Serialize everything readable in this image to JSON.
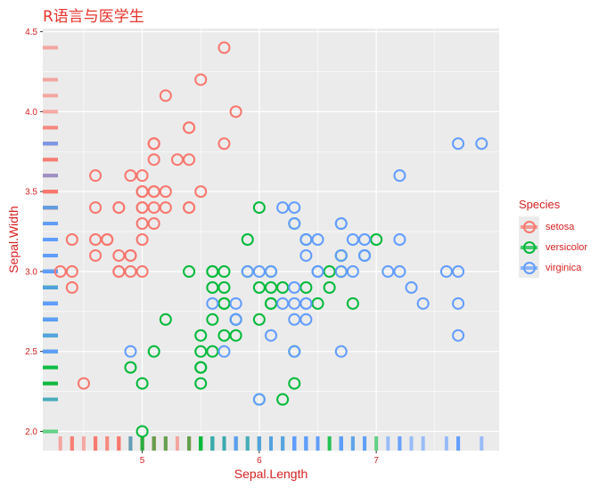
{
  "chart_data": {
    "type": "scatter",
    "title": "R语言与医学生",
    "xlabel": "Sepal.Length",
    "ylabel": "Sepal.Width",
    "xlim": [
      4.15,
      8.05
    ],
    "ylim": [
      1.88,
      4.52
    ],
    "x_ticks": [
      5,
      6,
      7
    ],
    "y_ticks": [
      2.0,
      2.5,
      3.0,
      3.5,
      4.0,
      4.5
    ],
    "x_tick_labels": [
      "5",
      "6",
      "7"
    ],
    "y_tick_labels": [
      "2.0",
      "2.5",
      "3.0",
      "3.5",
      "4.0",
      "4.5"
    ],
    "grid": true,
    "rug": true,
    "legend": {
      "title": "Species",
      "placement": "right"
    },
    "series": [
      {
        "name": "setosa",
        "color": "#F8766D",
        "points": [
          [
            5.1,
            3.5
          ],
          [
            4.9,
            3.0
          ],
          [
            4.7,
            3.2
          ],
          [
            4.6,
            3.1
          ],
          [
            5.0,
            3.6
          ],
          [
            5.4,
            3.9
          ],
          [
            4.6,
            3.4
          ],
          [
            5.0,
            3.4
          ],
          [
            4.4,
            2.9
          ],
          [
            4.9,
            3.1
          ],
          [
            5.4,
            3.7
          ],
          [
            4.8,
            3.4
          ],
          [
            4.8,
            3.0
          ],
          [
            4.3,
            3.0
          ],
          [
            5.8,
            4.0
          ],
          [
            5.7,
            4.4
          ],
          [
            5.4,
            3.9
          ],
          [
            5.1,
            3.5
          ],
          [
            5.7,
            3.8
          ],
          [
            5.1,
            3.8
          ],
          [
            5.4,
            3.4
          ],
          [
            5.1,
            3.7
          ],
          [
            4.6,
            3.6
          ],
          [
            5.1,
            3.3
          ],
          [
            4.8,
            3.4
          ],
          [
            5.0,
            3.0
          ],
          [
            5.0,
            3.4
          ],
          [
            5.2,
            3.5
          ],
          [
            5.2,
            3.4
          ],
          [
            4.7,
            3.2
          ],
          [
            4.8,
            3.1
          ],
          [
            5.4,
            3.4
          ],
          [
            5.2,
            4.1
          ],
          [
            5.5,
            4.2
          ],
          [
            4.9,
            3.1
          ],
          [
            5.0,
            3.2
          ],
          [
            5.5,
            3.5
          ],
          [
            4.9,
            3.6
          ],
          [
            4.4,
            3.0
          ],
          [
            5.1,
            3.4
          ],
          [
            5.0,
            3.5
          ],
          [
            4.5,
            2.3
          ],
          [
            4.4,
            3.2
          ],
          [
            5.0,
            3.5
          ],
          [
            5.1,
            3.8
          ],
          [
            4.8,
            3.0
          ],
          [
            5.1,
            3.8
          ],
          [
            4.6,
            3.2
          ],
          [
            5.3,
            3.7
          ],
          [
            5.0,
            3.3
          ]
        ]
      },
      {
        "name": "versicolor",
        "color": "#00BA38",
        "points": [
          [
            7.0,
            3.2
          ],
          [
            6.4,
            3.2
          ],
          [
            6.9,
            3.1
          ],
          [
            5.5,
            2.3
          ],
          [
            6.5,
            2.8
          ],
          [
            5.7,
            2.8
          ],
          [
            6.3,
            3.3
          ],
          [
            4.9,
            2.4
          ],
          [
            6.6,
            2.9
          ],
          [
            5.2,
            2.7
          ],
          [
            5.0,
            2.0
          ],
          [
            5.9,
            3.0
          ],
          [
            6.0,
            2.2
          ],
          [
            6.1,
            2.9
          ],
          [
            5.6,
            2.9
          ],
          [
            6.7,
            3.1
          ],
          [
            5.6,
            3.0
          ],
          [
            5.8,
            2.7
          ],
          [
            6.2,
            2.2
          ],
          [
            5.6,
            2.5
          ],
          [
            5.9,
            3.2
          ],
          [
            6.1,
            2.8
          ],
          [
            6.3,
            2.5
          ],
          [
            6.1,
            2.8
          ],
          [
            6.4,
            2.9
          ],
          [
            6.6,
            3.0
          ],
          [
            6.8,
            2.8
          ],
          [
            6.7,
            3.0
          ],
          [
            6.0,
            2.9
          ],
          [
            5.7,
            2.6
          ],
          [
            5.5,
            2.4
          ],
          [
            5.5,
            2.4
          ],
          [
            5.8,
            2.7
          ],
          [
            6.0,
            2.7
          ],
          [
            5.4,
            3.0
          ],
          [
            6.0,
            3.4
          ],
          [
            6.7,
            3.1
          ],
          [
            6.3,
            2.3
          ],
          [
            5.6,
            3.0
          ],
          [
            5.5,
            2.5
          ],
          [
            5.5,
            2.6
          ],
          [
            6.1,
            3.0
          ],
          [
            5.8,
            2.6
          ],
          [
            5.0,
            2.3
          ],
          [
            5.6,
            2.7
          ],
          [
            5.7,
            3.0
          ],
          [
            5.7,
            2.9
          ],
          [
            6.2,
            2.9
          ],
          [
            5.1,
            2.5
          ],
          [
            5.7,
            2.8
          ]
        ]
      },
      {
        "name": "virginica",
        "color": "#619CFF",
        "points": [
          [
            6.3,
            3.3
          ],
          [
            5.8,
            2.7
          ],
          [
            7.1,
            3.0
          ],
          [
            6.3,
            2.9
          ],
          [
            6.5,
            3.0
          ],
          [
            7.6,
            3.0
          ],
          [
            4.9,
            2.5
          ],
          [
            7.3,
            2.9
          ],
          [
            6.7,
            2.5
          ],
          [
            7.2,
            3.6
          ],
          [
            6.5,
            3.2
          ],
          [
            6.4,
            2.7
          ],
          [
            6.8,
            3.0
          ],
          [
            5.7,
            2.5
          ],
          [
            5.8,
            2.8
          ],
          [
            6.4,
            3.2
          ],
          [
            6.5,
            3.0
          ],
          [
            7.7,
            3.8
          ],
          [
            7.7,
            2.6
          ],
          [
            6.0,
            2.2
          ],
          [
            6.9,
            3.2
          ],
          [
            5.6,
            2.8
          ],
          [
            7.7,
            2.8
          ],
          [
            6.3,
            2.7
          ],
          [
            6.7,
            3.3
          ],
          [
            7.2,
            3.2
          ],
          [
            6.2,
            2.8
          ],
          [
            6.1,
            3.0
          ],
          [
            6.4,
            2.8
          ],
          [
            7.2,
            3.0
          ],
          [
            7.4,
            2.8
          ],
          [
            7.9,
            3.8
          ],
          [
            6.4,
            2.8
          ],
          [
            6.3,
            2.8
          ],
          [
            6.1,
            2.6
          ],
          [
            7.7,
            3.0
          ],
          [
            6.3,
            3.4
          ],
          [
            6.4,
            3.1
          ],
          [
            6.0,
            3.0
          ],
          [
            6.9,
            3.1
          ],
          [
            6.7,
            3.1
          ],
          [
            6.9,
            3.1
          ],
          [
            5.8,
            2.7
          ],
          [
            6.8,
            3.2
          ],
          [
            6.7,
            3.3
          ],
          [
            6.7,
            3.0
          ],
          [
            6.3,
            2.5
          ],
          [
            6.5,
            3.0
          ],
          [
            6.2,
            3.4
          ],
          [
            5.9,
            3.0
          ]
        ]
      }
    ]
  }
}
